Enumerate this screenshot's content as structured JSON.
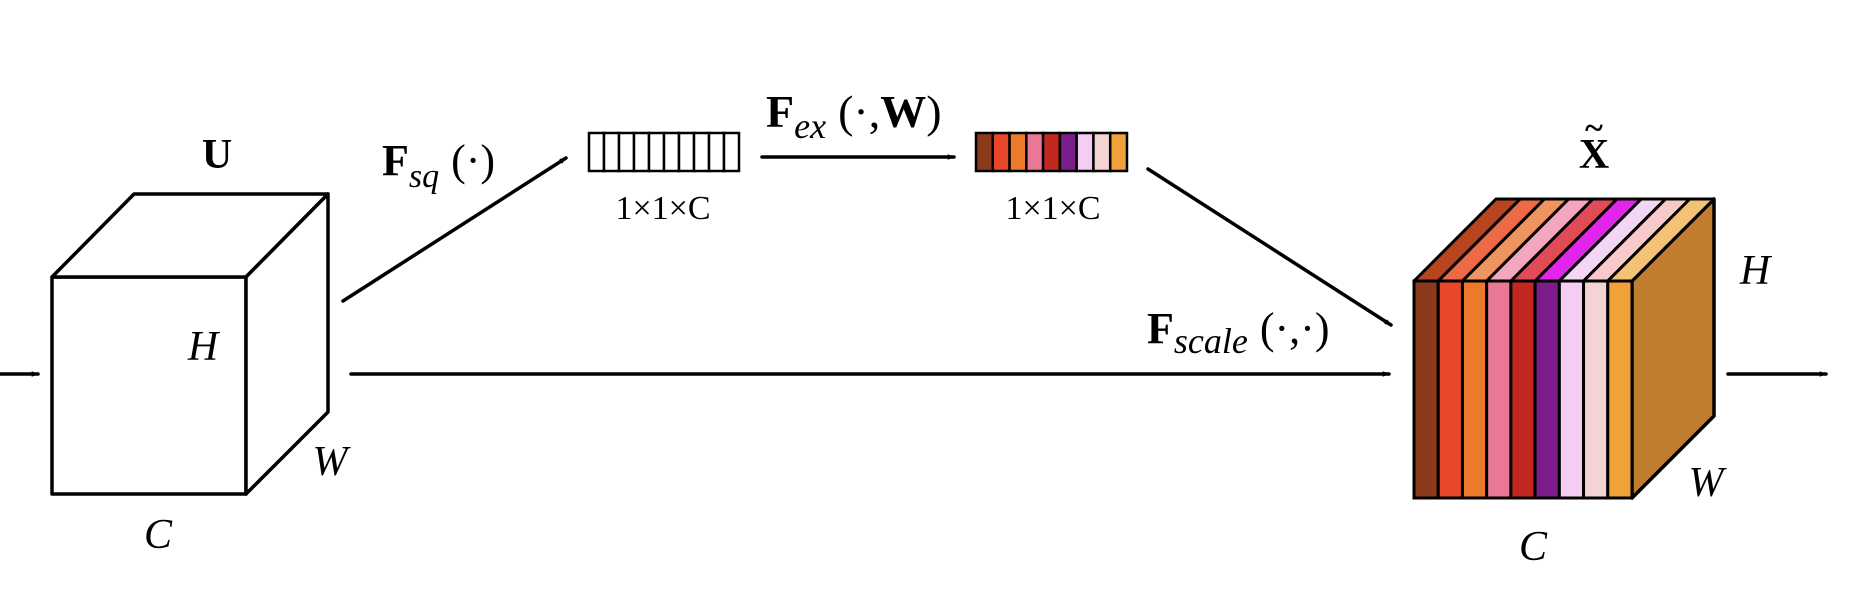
{
  "input_cube": {
    "label": "U",
    "dim_h": "H",
    "dim_w": "W",
    "dim_c": "C"
  },
  "squeeze": {
    "op_main": "F",
    "op_sub": "sq",
    "op_args": "(·)",
    "vector_dims": "1×1×C",
    "cell_count": 10
  },
  "excitation": {
    "op_main": "F",
    "op_sub": "ex",
    "op_args_open": "(·,",
    "op_args_bold": "W",
    "op_args_close": ")",
    "vector_dims": "1×1×C",
    "colors": [
      "#8b3a1c",
      "#e8482a",
      "#ec7a2a",
      "#e97894",
      "#c2281f",
      "#7b1e8b",
      "#f3cdf2",
      "#f4d3d3",
      "#f0a13a"
    ]
  },
  "scale": {
    "op_main": "F",
    "op_sub": "scale",
    "op_args": "(·,·)"
  },
  "output_cube": {
    "label": "X",
    "tilde": "~",
    "dim_h": "H",
    "dim_w": "W",
    "dim_c": "C",
    "front_colors": [
      "#8b3a1c",
      "#e8482a",
      "#ec7a2a",
      "#e97894",
      "#c2281f",
      "#7b1e8b",
      "#f3cdf2",
      "#f4d3d3",
      "#f0a13a"
    ],
    "top_colors": [
      "#b8451f",
      "#ee6a45",
      "#ef9360",
      "#f3a6be",
      "#e04b58",
      "#e026e8",
      "#f5d5f5",
      "#f7c9c9",
      "#f3c277"
    ],
    "side_color": "#bf7d2d"
  }
}
